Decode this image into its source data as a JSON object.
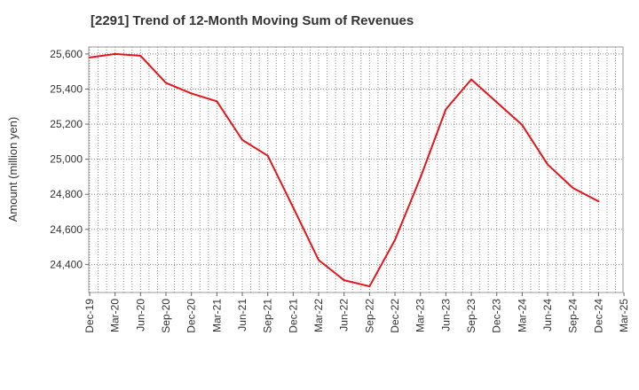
{
  "chart_data": {
    "type": "line",
    "title": "[2291]  Trend of 12-Month Moving Sum of Revenues",
    "xlabel": "",
    "ylabel": "Amount (million yen)",
    "categories": [
      "Dec-19",
      "Mar-20",
      "Jun-20",
      "Sep-20",
      "Dec-20",
      "Mar-21",
      "Jun-21",
      "Sep-21",
      "Dec-21",
      "Mar-22",
      "Jun-22",
      "Sep-22",
      "Dec-22",
      "Mar-23",
      "Jun-23",
      "Sep-23",
      "Dec-23",
      "Mar-24",
      "Jun-24",
      "Sep-24",
      "Dec-24",
      "Mar-25"
    ],
    "series": [
      {
        "name": "",
        "color": "#e8141a",
        "values": [
          25580,
          25600,
          25590,
          25435,
          25375,
          25330,
          25110,
          25020,
          24725,
          24425,
          24310,
          24275,
          24540,
          24895,
          25285,
          25455,
          25325,
          25195,
          24970,
          24835,
          24760,
          null
        ]
      }
    ],
    "ylim": [
      24240,
      25640
    ],
    "yticks": [
      24400,
      24600,
      24800,
      25000,
      25200,
      25400,
      25600
    ],
    "ytick_labels": [
      "24,400",
      "24,600",
      "24,800",
      "25,000",
      "25,200",
      "25,400",
      "25,600"
    ],
    "grid": true
  }
}
